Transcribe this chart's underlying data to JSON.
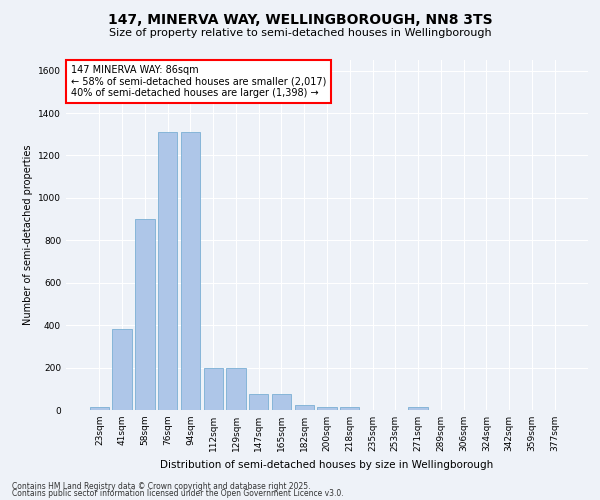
{
  "title": "147, MINERVA WAY, WELLINGBOROUGH, NN8 3TS",
  "subtitle": "Size of property relative to semi-detached houses in Wellingborough",
  "xlabel": "Distribution of semi-detached houses by size in Wellingborough",
  "ylabel": "Number of semi-detached properties",
  "categories": [
    "23sqm",
    "41sqm",
    "58sqm",
    "76sqm",
    "94sqm",
    "112sqm",
    "129sqm",
    "147sqm",
    "165sqm",
    "182sqm",
    "200sqm",
    "218sqm",
    "235sqm",
    "253sqm",
    "271sqm",
    "289sqm",
    "306sqm",
    "324sqm",
    "342sqm",
    "359sqm",
    "377sqm"
  ],
  "values": [
    15,
    380,
    900,
    1310,
    1310,
    200,
    200,
    75,
    75,
    25,
    15,
    15,
    0,
    0,
    15,
    0,
    0,
    0,
    0,
    0,
    0
  ],
  "bar_color": "#aec6e8",
  "bar_edge_color": "#7bafd4",
  "annotation_title": "147 MINERVA WAY: 86sqm",
  "annotation_line2": "← 58% of semi-detached houses are smaller (2,017)",
  "annotation_line3": "40% of semi-detached houses are larger (1,398) →",
  "footnote1": "Contains HM Land Registry data © Crown copyright and database right 2025.",
  "footnote2": "Contains public sector information licensed under the Open Government Licence v3.0.",
  "ylim": [
    0,
    1650
  ],
  "yticks": [
    0,
    200,
    400,
    600,
    800,
    1000,
    1200,
    1400,
    1600
  ],
  "background_color": "#eef2f8",
  "grid_color": "#ffffff"
}
